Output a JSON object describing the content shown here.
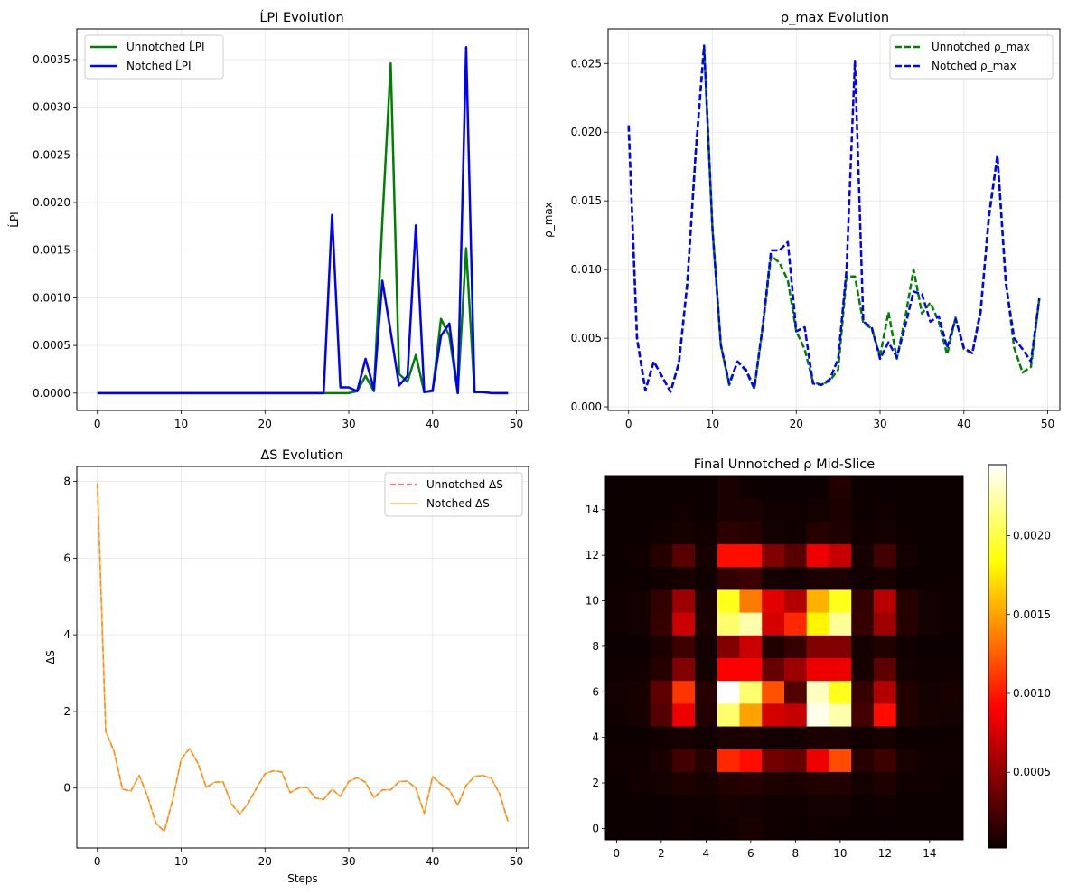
{
  "chart_data": [
    {
      "type": "line",
      "title": "ĹPI Evolution",
      "xlabel": "",
      "ylabel": "ĹPI",
      "xlim": [
        -2.45,
        51.45
      ],
      "ylim": [
        -0.000182,
        0.003822
      ],
      "xticks": [
        0,
        10,
        20,
        30,
        40,
        50
      ],
      "yticks": [
        "0.0000",
        "0.0005",
        "0.0010",
        "0.0015",
        "0.0020",
        "0.0025",
        "0.0030",
        "0.0035"
      ],
      "ytick_values": [
        0,
        0.0005,
        0.001,
        0.0015,
        0.002,
        0.0025,
        0.003,
        0.0035
      ],
      "grid": true,
      "legend": "upper left",
      "x": [
        0,
        1,
        2,
        3,
        4,
        5,
        6,
        7,
        8,
        9,
        10,
        11,
        12,
        13,
        14,
        15,
        16,
        17,
        18,
        19,
        20,
        21,
        22,
        23,
        24,
        25,
        26,
        27,
        28,
        29,
        30,
        31,
        32,
        33,
        34,
        35,
        36,
        37,
        38,
        39,
        40,
        41,
        42,
        43,
        44,
        45,
        46,
        47,
        48,
        49
      ],
      "series": [
        {
          "name": "Unnotched ĹPI",
          "color": "#008000",
          "dash": "solid",
          "values": [
            0,
            0,
            0,
            0,
            0,
            0,
            0,
            0,
            0,
            0,
            0,
            0,
            0,
            0,
            0,
            0,
            0,
            0,
            0,
            0,
            0,
            0,
            0,
            0,
            0,
            0,
            0,
            0,
            0,
            0,
            0,
            2e-05,
            0.00018,
            2e-05,
            0.0018,
            0.00346,
            0.0002,
            0.00012,
            0.0004,
            1e-05,
            2e-05,
            0.00078,
            0.0006,
            0,
            0.00152,
            1e-05,
            1e-05,
            0,
            0,
            0
          ]
        },
        {
          "name": "Notched ĹPI",
          "color": "#0000ff",
          "dash": "solid",
          "values": [
            0,
            0,
            0,
            0,
            0,
            0,
            0,
            0,
            0,
            0,
            0,
            0,
            0,
            0,
            0,
            0,
            0,
            0,
            0,
            0,
            0,
            0,
            0,
            0,
            0,
            0,
            0,
            0,
            0.00187,
            6e-05,
            6e-05,
            2e-05,
            0.00036,
            4e-05,
            0.00118,
            0.00064,
            8e-05,
            0.00018,
            0.00176,
            1e-05,
            3e-05,
            0.0006,
            0.00073,
            0,
            0.00363,
            1e-05,
            1e-05,
            0,
            0,
            0
          ]
        }
      ]
    },
    {
      "type": "line",
      "title": "ρ_max Evolution",
      "xlabel": "",
      "ylabel": "ρ_max",
      "xlim": [
        -2.45,
        51.45
      ],
      "ylim": [
        -0.00026,
        0.02752
      ],
      "xticks": [
        0,
        10,
        20,
        30,
        40,
        50
      ],
      "yticks": [
        "0.000",
        "0.005",
        "0.010",
        "0.015",
        "0.020",
        "0.025"
      ],
      "ytick_values": [
        0,
        0.005,
        0.01,
        0.015,
        0.02,
        0.025
      ],
      "grid": true,
      "legend": "upper right",
      "x": [
        0,
        1,
        2,
        3,
        4,
        5,
        6,
        7,
        8,
        9,
        10,
        11,
        12,
        13,
        14,
        15,
        16,
        17,
        18,
        19,
        20,
        21,
        22,
        23,
        24,
        25,
        26,
        27,
        28,
        29,
        30,
        31,
        32,
        33,
        34,
        35,
        36,
        37,
        38,
        39,
        40,
        41,
        42,
        43,
        44,
        45,
        46,
        47,
        48,
        49
      ],
      "series": [
        {
          "name": "Unnotched ρ_max",
          "color": "#008000",
          "dash": "dashed",
          "values": [
            0.0205,
            0.005,
            0.0012,
            0.0033,
            0.0022,
            0.0011,
            0.0032,
            0.009,
            0.0185,
            0.0262,
            0.013,
            0.0045,
            0.0016,
            0.0033,
            0.0026,
            0.0013,
            0.0058,
            0.011,
            0.0105,
            0.0092,
            0.0055,
            0.0042,
            0.0018,
            0.0016,
            0.0019,
            0.0027,
            0.0095,
            0.0095,
            0.0061,
            0.0057,
            0.0037,
            0.0069,
            0.0035,
            0.0065,
            0.01,
            0.0068,
            0.0076,
            0.0062,
            0.0038,
            0.0065,
            0.0042,
            0.0039,
            0.0071,
            0.0138,
            0.0183,
            0.0092,
            0.0043,
            0.0025,
            0.0029,
            0.0079
          ]
        },
        {
          "name": "Notched ρ_max",
          "color": "#0000ff",
          "dash": "dashed",
          "values": [
            0.0205,
            0.005,
            0.0012,
            0.0033,
            0.0022,
            0.0011,
            0.0032,
            0.009,
            0.0185,
            0.0263,
            0.013,
            0.0045,
            0.0017,
            0.0033,
            0.0027,
            0.0014,
            0.0059,
            0.0114,
            0.0114,
            0.012,
            0.0055,
            0.0058,
            0.0017,
            0.0016,
            0.002,
            0.0035,
            0.01,
            0.0252,
            0.0062,
            0.0058,
            0.0035,
            0.0047,
            0.0036,
            0.0059,
            0.0084,
            0.0082,
            0.0062,
            0.0066,
            0.0043,
            0.0064,
            0.0043,
            0.0039,
            0.0069,
            0.014,
            0.0183,
            0.009,
            0.005,
            0.0042,
            0.0033,
            0.0079
          ]
        }
      ]
    },
    {
      "type": "line",
      "title": "ΔS Evolution",
      "xlabel": "Steps",
      "ylabel": "ΔS",
      "xlim": [
        -2.45,
        51.45
      ],
      "ylim": [
        -1.565,
        8.391
      ],
      "xticks": [
        0,
        10,
        20,
        30,
        40,
        50
      ],
      "yticks": [
        "0",
        "2",
        "4",
        "6",
        "8"
      ],
      "ytick_values": [
        0,
        2,
        4,
        6,
        8
      ],
      "grid": true,
      "legend": "upper right",
      "x": [
        0,
        1,
        2,
        3,
        4,
        5,
        6,
        7,
        8,
        9,
        10,
        11,
        12,
        13,
        14,
        15,
        16,
        17,
        18,
        19,
        20,
        21,
        22,
        23,
        24,
        25,
        26,
        27,
        28,
        29,
        30,
        31,
        32,
        33,
        34,
        35,
        36,
        37,
        38,
        39,
        40,
        41,
        42,
        43,
        44,
        45,
        46,
        47,
        48,
        49
      ],
      "series": [
        {
          "name": "Unnotched ΔS",
          "color": "#ff0000",
          "dash": "dashed",
          "values": [
            7.95,
            1.48,
            0.95,
            -0.03,
            -0.08,
            0.33,
            -0.22,
            -0.93,
            -1.13,
            -0.3,
            0.75,
            1.03,
            0.65,
            0.02,
            0.15,
            0.16,
            -0.42,
            -0.68,
            -0.4,
            0.0,
            0.37,
            0.45,
            0.42,
            -0.12,
            0.0,
            0.02,
            -0.26,
            -0.3,
            -0.03,
            -0.22,
            0.17,
            0.27,
            0.15,
            -0.25,
            -0.05,
            -0.05,
            0.17,
            0.18,
            0.0,
            -0.66,
            0.3,
            0.1,
            -0.05,
            -0.45,
            0.07,
            0.3,
            0.33,
            0.25,
            -0.15,
            -0.88
          ]
        },
        {
          "name": "Notched ΔS",
          "color": "#ffa500",
          "dash": "solid",
          "values": [
            7.95,
            1.48,
            0.95,
            -0.03,
            -0.08,
            0.33,
            -0.22,
            -0.93,
            -1.13,
            -0.3,
            0.75,
            1.03,
            0.65,
            0.02,
            0.15,
            0.16,
            -0.42,
            -0.68,
            -0.4,
            0.0,
            0.37,
            0.45,
            0.42,
            -0.12,
            0.0,
            0.02,
            -0.26,
            -0.3,
            -0.03,
            -0.22,
            0.17,
            0.27,
            0.15,
            -0.25,
            -0.05,
            -0.05,
            0.17,
            0.18,
            0.0,
            -0.66,
            0.3,
            0.1,
            -0.05,
            -0.45,
            0.07,
            0.3,
            0.33,
            0.25,
            -0.15,
            -0.88
          ]
        }
      ]
    },
    {
      "type": "heatmap",
      "title": "Final Unnotched ρ Mid-Slice",
      "xlabel": "",
      "ylabel": "",
      "colormap": "hot",
      "origin": "lower",
      "xticks": [
        0,
        2,
        4,
        6,
        8,
        10,
        12,
        14
      ],
      "yticks": [
        0,
        2,
        4,
        6,
        8,
        10,
        12,
        14
      ],
      "colorbar_ticks": [
        "0.0005",
        "0.0010",
        "0.0015",
        "0.0020"
      ],
      "colorbar_tick_values": [
        0.0005,
        0.001,
        0.0015,
        0.002
      ],
      "vmin": 2e-05,
      "vmax": 0.00245,
      "values": [
        [
          3e-05,
          3e-05,
          3e-05,
          4e-05,
          3e-05,
          4e-05,
          8e-05,
          4e-05,
          3e-05,
          4e-05,
          3e-05,
          3e-05,
          3e-05,
          3e-05,
          3e-05,
          3e-05
        ],
        [
          3e-05,
          3e-05,
          3e-05,
          4e-05,
          4e-05,
          6e-05,
          5e-05,
          4e-05,
          4e-05,
          5e-05,
          5e-05,
          3e-05,
          4e-05,
          3e-05,
          3e-05,
          3e-05
        ],
        [
          3e-05,
          4e-05,
          5e-05,
          9e-05,
          6e-05,
          0.00011,
          0.00012,
          9e-05,
          8e-05,
          0.0001,
          0.00011,
          5e-05,
          9e-05,
          4e-05,
          4e-05,
          3e-05
        ],
        [
          4e-05,
          4e-05,
          8e-05,
          0.00022,
          0.00012,
          0.00105,
          0.00095,
          0.0004,
          0.00035,
          0.00085,
          0.00118,
          0.00012,
          0.0002,
          7e-05,
          4e-05,
          4e-05
        ],
        [
          3e-05,
          3e-05,
          4e-05,
          6e-05,
          4e-05,
          8e-05,
          8e-05,
          5e-05,
          5e-05,
          8e-05,
          8e-05,
          4e-05,
          6e-05,
          3e-05,
          3e-05,
          3e-05
        ],
        [
          4e-05,
          6e-05,
          0.00028,
          0.00085,
          0.0001,
          0.0021,
          0.0015,
          0.00075,
          0.0007,
          0.0024,
          0.00225,
          0.00022,
          0.00095,
          0.0001,
          6e-05,
          5e-05
        ],
        [
          5e-05,
          6e-05,
          0.00032,
          0.0011,
          0.00012,
          0.00245,
          0.0021,
          0.0012,
          0.00028,
          0.0023,
          0.0019,
          0.00018,
          0.00062,
          0.0001,
          5e-05,
          7e-05
        ],
        [
          4e-05,
          4e-05,
          0.00012,
          0.00045,
          5e-05,
          0.0009,
          0.0009,
          0.00035,
          0.00055,
          0.00085,
          0.00085,
          6e-05,
          0.00032,
          5e-05,
          4e-05,
          4e-05
        ],
        [
          3e-05,
          3e-05,
          8e-05,
          0.0002,
          5e-05,
          0.00045,
          0.00072,
          0.0001,
          0.00018,
          0.00045,
          0.00045,
          5e-05,
          0.0001,
          4e-05,
          3e-05,
          3e-05
        ],
        [
          4e-05,
          5e-05,
          0.00018,
          0.00072,
          8e-05,
          0.0021,
          0.00225,
          0.00075,
          0.00105,
          0.0018,
          0.0022,
          0.00018,
          0.00055,
          0.00012,
          5e-05,
          4e-05
        ],
        [
          4e-05,
          5e-05,
          0.00016,
          0.00055,
          7e-05,
          0.0019,
          0.00135,
          0.0008,
          0.00062,
          0.00155,
          0.0019,
          0.00016,
          0.00065,
          0.00012,
          5e-05,
          4e-05
        ],
        [
          3e-05,
          3e-05,
          4e-05,
          6e-05,
          4e-05,
          0.00016,
          0.0002,
          6e-05,
          5e-05,
          8e-05,
          8e-05,
          4e-05,
          6e-05,
          3e-05,
          3e-05,
          3e-05
        ],
        [
          3e-05,
          4e-05,
          0.00012,
          0.0003,
          6e-05,
          0.00095,
          0.00095,
          0.00045,
          0.0003,
          0.00085,
          0.0007,
          6e-05,
          0.00022,
          5e-05,
          3e-05,
          3e-05
        ],
        [
          3e-05,
          3e-05,
          4e-05,
          6e-05,
          4e-05,
          0.00014,
          0.00012,
          5e-05,
          4e-05,
          0.00012,
          9e-05,
          4e-05,
          5e-05,
          3e-05,
          3e-05,
          3e-05
        ],
        [
          3e-05,
          3e-05,
          3e-05,
          4e-05,
          3e-05,
          8e-05,
          8e-05,
          4e-05,
          4e-05,
          5e-05,
          8e-05,
          3e-05,
          4e-05,
          3e-05,
          3e-05,
          3e-05
        ],
        [
          3e-05,
          3e-05,
          3e-05,
          3e-05,
          3e-05,
          8e-05,
          3e-05,
          3e-05,
          3e-05,
          3e-05,
          0.0001,
          3e-05,
          3e-05,
          3e-05,
          3e-05,
          3e-05
        ]
      ]
    }
  ]
}
